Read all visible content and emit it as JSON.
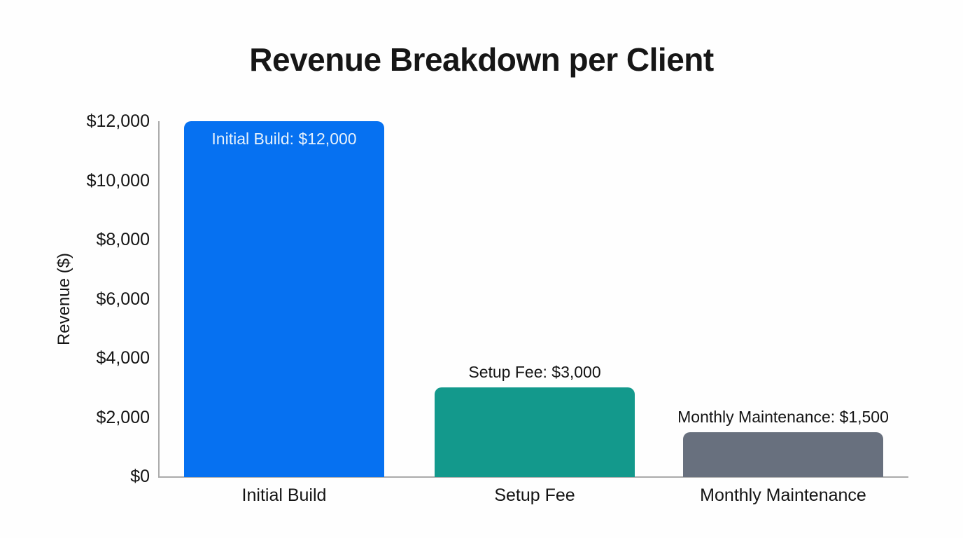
{
  "chart_data": {
    "type": "bar",
    "title": "Revenue Breakdown per Client",
    "ylabel": "Revenue ($)",
    "xlabel": "",
    "ylim": [
      0,
      12000
    ],
    "ytick_interval": 2000,
    "yticks": [
      "$0",
      "$2,000",
      "$4,000",
      "$6,000",
      "$8,000",
      "$10,000",
      "$12,000"
    ],
    "categories": [
      "Initial Build",
      "Setup Fee",
      "Monthly Maintenance"
    ],
    "values": [
      12000,
      3000,
      1500
    ],
    "bar_labels": [
      "Initial Build: $12,000",
      "Setup Fee: $3,000",
      "Monthly Maintenance: $1,500"
    ],
    "bar_colors": [
      "#0671f1",
      "#13998c",
      "#68707e"
    ],
    "bar_label_positions": [
      "inside",
      "above",
      "above"
    ],
    "bar_label_colors": [
      "#e6f1fc",
      "#141414",
      "#141414"
    ],
    "grid": false,
    "legend": false,
    "axis_color": "#ababab",
    "text_color": "#141414",
    "background": "#fefefe"
  }
}
